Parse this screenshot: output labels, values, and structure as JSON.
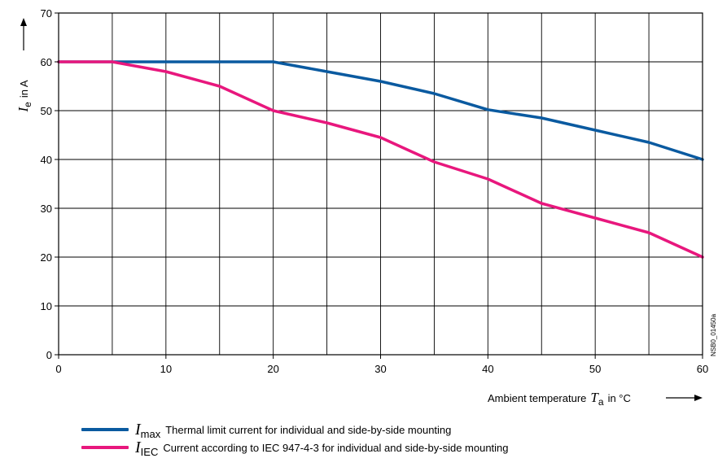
{
  "chart_data": {
    "type": "line",
    "x_ticks": [
      0,
      10,
      20,
      30,
      40,
      50,
      60
    ],
    "y_ticks": [
      0,
      10,
      20,
      30,
      40,
      50,
      60,
      70
    ],
    "xlim": [
      0,
      60
    ],
    "ylim": [
      0,
      70
    ],
    "grid": true,
    "xlabel": {
      "prefix": "Ambient temperature",
      "symbol": "T",
      "subscript": "a",
      "suffix": "in °C"
    },
    "ylabel": {
      "symbol": "I",
      "subscript": "e",
      "suffix": "in A"
    },
    "code_label": "NSB0_01450a",
    "legend_placement": "bottom",
    "series": [
      {
        "name": "I max",
        "symbol": "I",
        "subscript": "max",
        "description": "Thermal limit current for individual and side-by-side mounting",
        "color": "#0a5aa0",
        "points": [
          [
            0,
            60
          ],
          [
            5,
            60
          ],
          [
            10,
            60
          ],
          [
            15,
            60
          ],
          [
            20,
            60
          ],
          [
            25,
            58
          ],
          [
            30,
            56
          ],
          [
            35,
            53.5
          ],
          [
            40,
            50.2
          ],
          [
            45,
            48.5
          ],
          [
            50,
            46
          ],
          [
            55,
            43.5
          ],
          [
            60,
            40
          ]
        ]
      },
      {
        "name": "I IEC",
        "symbol": "I",
        "subscript": "IEC",
        "description": "Current according to IEC 947-4-3 for individual and side-by-side mounting",
        "color": "#e8177d",
        "points": [
          [
            0,
            60
          ],
          [
            5,
            60
          ],
          [
            10,
            58
          ],
          [
            15,
            55
          ],
          [
            20,
            50
          ],
          [
            25,
            47.5
          ],
          [
            30,
            44.5
          ],
          [
            35,
            39.5
          ],
          [
            40,
            36
          ],
          [
            45,
            31
          ],
          [
            50,
            28
          ],
          [
            55,
            25
          ],
          [
            60,
            20
          ]
        ]
      }
    ]
  }
}
